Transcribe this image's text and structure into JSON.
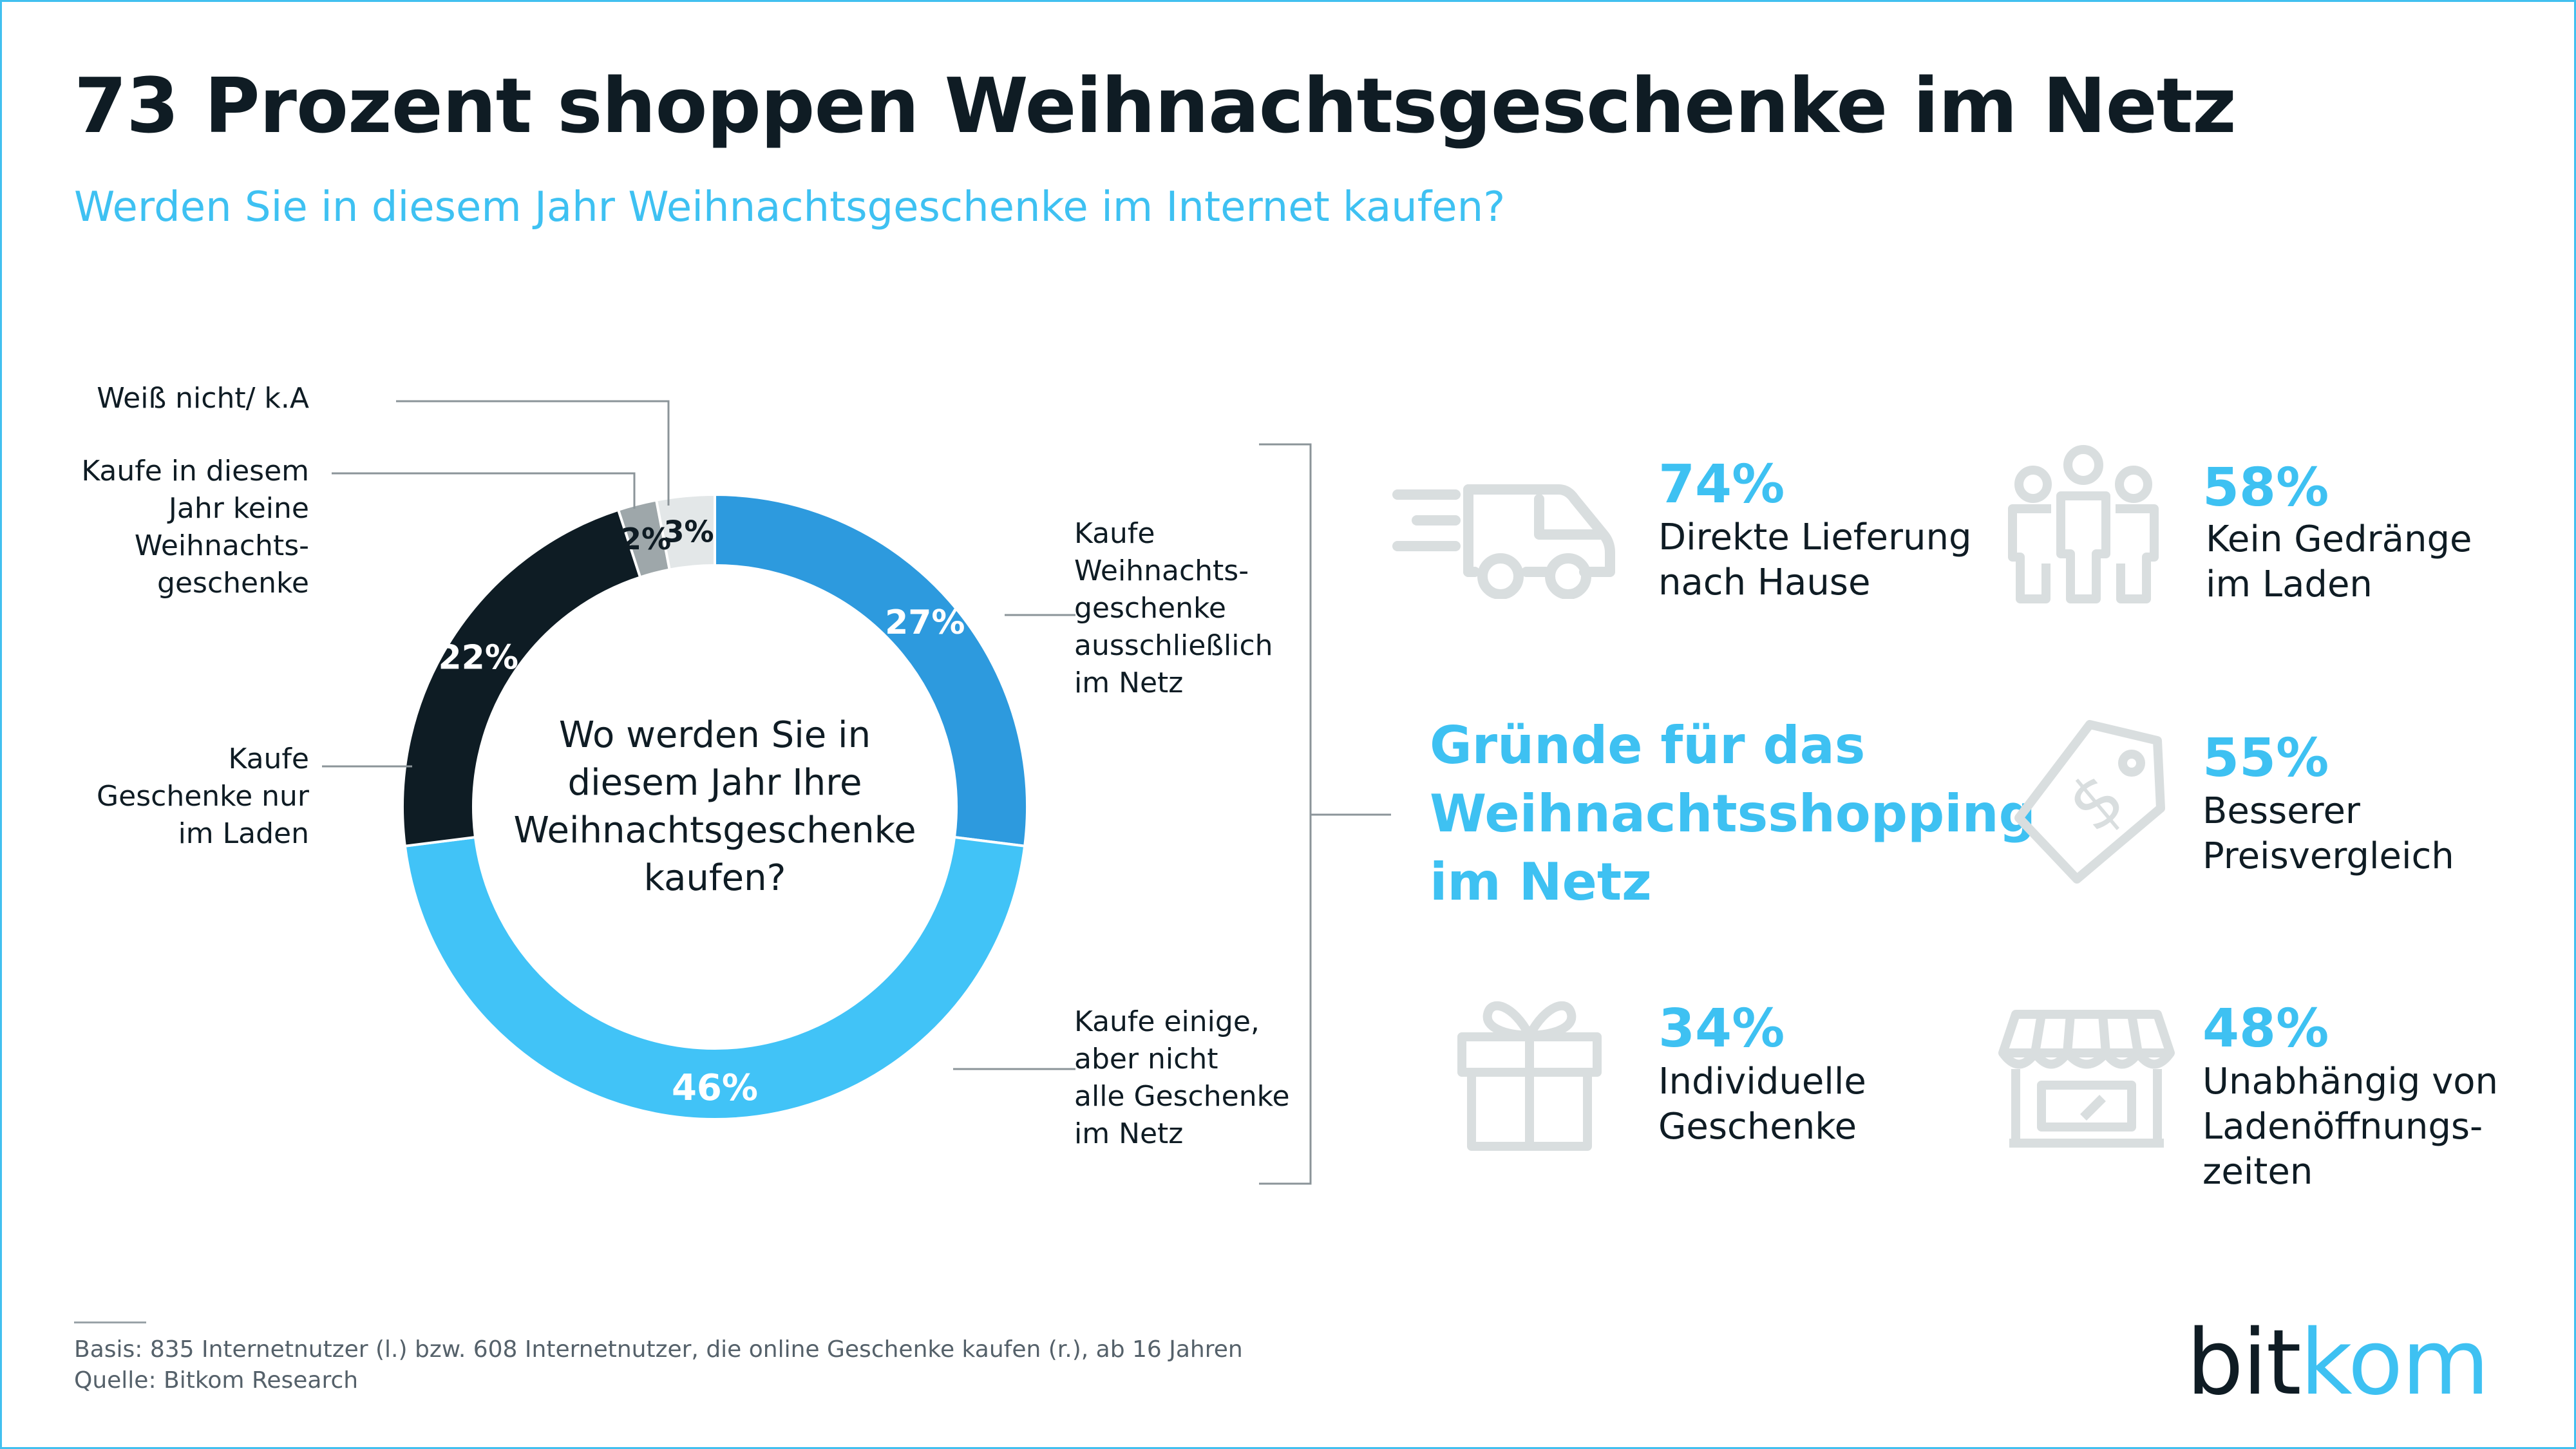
{
  "title": "73 Prozent shoppen Weihnachtsgeschenke im Netz",
  "subtitle": "Werden Sie in diesem Jahr Weihnachtsgeschenke im Internet kaufen?",
  "donut": {
    "center_question": [
      "Wo werden Sie in",
      "diesem Jahr Ihre",
      "Weihnachtsgeschenke",
      "kaufen?"
    ],
    "labels": {
      "online_only": [
        "Kaufe",
        "Weihnachts-",
        "geschenke",
        "ausschließlich",
        "im Netz"
      ],
      "some_online": [
        "Kaufe einige,",
        "aber nicht",
        "alle Geschenke",
        "im Netz"
      ],
      "store_only": [
        "Kaufe",
        "Geschenke nur",
        "im Laden"
      ],
      "no_gifts": [
        "Kaufe in diesem",
        "Jahr keine",
        "Weihnachts-",
        "geschenke"
      ],
      "dont_know": [
        "Weiß nicht/ k.A"
      ]
    }
  },
  "chart_data": [
    {
      "type": "pie",
      "variant": "donut",
      "title": "Wo werden Sie in diesem Jahr Ihre Weihnachtsgeschenke kaufen?",
      "categories": [
        "Kaufe Weihnachtsgeschenke ausschließlich im Netz",
        "Kaufe einige, aber nicht alle Geschenke im Netz",
        "Kaufe Geschenke nur im Laden",
        "Kaufe in diesem Jahr keine Weihnachtsgeschenke",
        "Weiß nicht/ k.A"
      ],
      "values": [
        27,
        46,
        22,
        2,
        3
      ],
      "value_labels": [
        "27%",
        "46%",
        "22%",
        "2%",
        "3%"
      ],
      "colors": [
        "#2d9ade",
        "#41c3f7",
        "#0e1c24",
        "#9ea7aa",
        "#e3e7e8"
      ]
    },
    {
      "type": "table",
      "title": "Gründe für das Weihnachtsshopping im Netz",
      "rows": [
        {
          "reason": "Direkte Lieferung nach Hause",
          "value": 74
        },
        {
          "reason": "Kein Gedränge im Laden",
          "value": 58
        },
        {
          "reason": "Besserer Preisvergleich",
          "value": 55
        },
        {
          "reason": "Individuelle Geschenke",
          "value": 34
        },
        {
          "reason": "Unabhängig von Ladenöffnungszeiten",
          "value": 48
        }
      ]
    }
  ],
  "reasons": {
    "title": [
      "Gründe für das",
      "Weihnachtsshopping",
      "im Netz"
    ],
    "items": [
      {
        "pct": "74%",
        "lines": [
          "Direkte Lieferung",
          "nach Hause"
        ],
        "icon": "delivery-truck-icon"
      },
      {
        "pct": "58%",
        "lines": [
          "Kein Gedränge",
          "im Laden"
        ],
        "icon": "people-crowd-icon"
      },
      {
        "pct": "55%",
        "lines": [
          "Besserer",
          "Preisvergleich"
        ],
        "icon": "price-tag-icon"
      },
      {
        "pct": "34%",
        "lines": [
          "Individuelle",
          "Geschenke"
        ],
        "icon": "gift-box-icon"
      },
      {
        "pct": "48%",
        "lines": [
          "Unabhängig von",
          "Ladenöffnungs-",
          "zeiten"
        ],
        "icon": "storefront-icon"
      }
    ]
  },
  "footer": {
    "basis": "Basis: 835 Internetnutzer (l.) bzw. 608 Internetnutzer, die online Geschenke kaufen (r.), ab 16 Jahren",
    "source": "Quelle: Bitkom Research"
  },
  "brand": {
    "part1": "bit",
    "part2": "kom"
  },
  "colors": {
    "accent": "#3ec1f2",
    "dark": "#0f1c24",
    "icon": "#d9dedf"
  }
}
